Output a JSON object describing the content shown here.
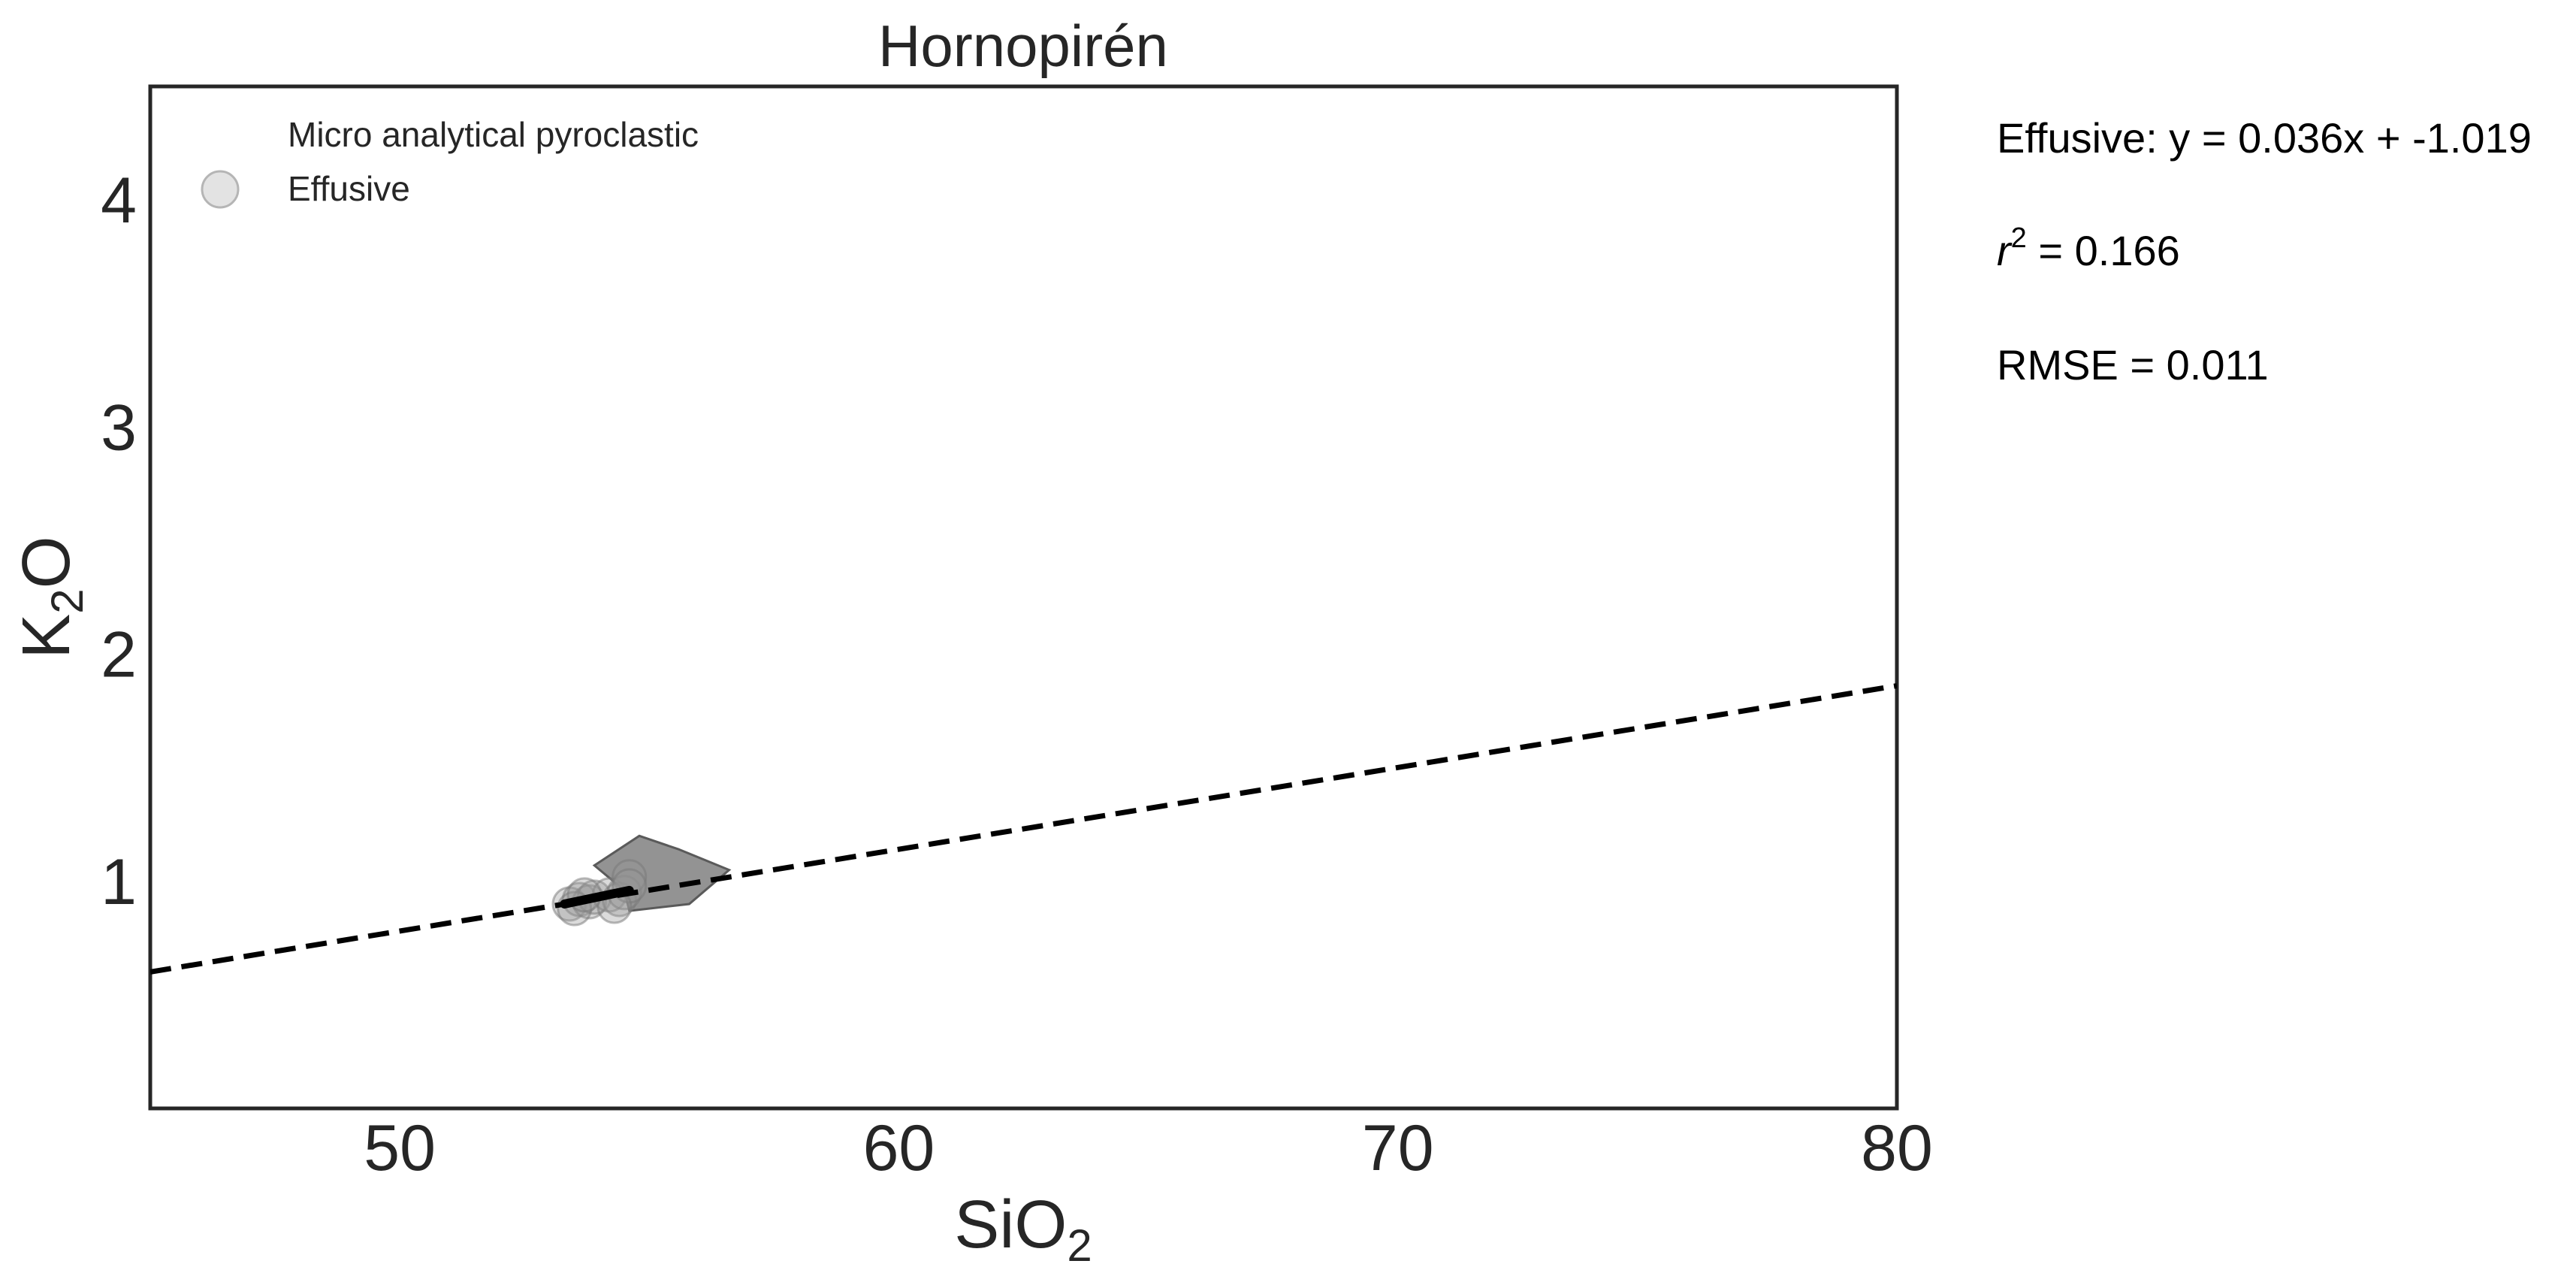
{
  "chart_data": {
    "type": "scatter",
    "title": "Hornopirén",
    "xlabel": {
      "main": "SiO",
      "sub": "2"
    },
    "ylabel": {
      "main": "K",
      "sub": "2",
      "rest": "O"
    },
    "xlim": [
      45,
      80
    ],
    "ylim": [
      0,
      4.5
    ],
    "xticks": [
      50,
      60,
      70,
      80
    ],
    "yticks": [
      1,
      2,
      3,
      4
    ],
    "grid": false,
    "legend": {
      "placement": "top-left",
      "entries": [
        {
          "label": "Micro analytical pyroclastic",
          "marker": "none"
        },
        {
          "label": "Effusive",
          "marker": "circle",
          "color": "#cccccc"
        }
      ]
    },
    "series": [
      {
        "name": "Effusive",
        "kind": "points",
        "color": "#999999",
        "points": [
          [
            53.4,
            0.9
          ],
          [
            53.6,
            0.92
          ],
          [
            53.8,
            0.91
          ],
          [
            53.9,
            0.93
          ],
          [
            53.5,
            0.88
          ],
          [
            54.2,
            0.94
          ],
          [
            54.4,
            0.92
          ],
          [
            54.5,
            0.95
          ],
          [
            54.6,
            1.02
          ],
          [
            54.6,
            0.98
          ],
          [
            54.3,
            0.89
          ],
          [
            53.7,
            0.94
          ]
        ]
      },
      {
        "name": "Effusive hull",
        "kind": "polygon",
        "color": "#808080",
        "points": [
          [
            55.6,
            1.14
          ],
          [
            56.6,
            1.05
          ],
          [
            55.8,
            0.9
          ],
          [
            54.6,
            0.87
          ],
          [
            54.5,
            0.96
          ],
          [
            53.9,
            1.07
          ],
          [
            54.8,
            1.2
          ]
        ]
      },
      {
        "name": "Effusive fit segment",
        "kind": "line",
        "color": "#000000",
        "points": [
          [
            53.3,
            0.9
          ],
          [
            54.6,
            0.96
          ]
        ]
      },
      {
        "name": "Regression line",
        "kind": "dashed-line",
        "color": "#000000",
        "slope": 0.036,
        "intercept": -1.019
      }
    ],
    "annotations": {
      "equation": "Effusive: y = 0.036x + -1.019",
      "r2_symbol": "r",
      "r2_exp": "2",
      "r2_value": " = 0.166",
      "rmse": "RMSE = 0.011"
    }
  }
}
